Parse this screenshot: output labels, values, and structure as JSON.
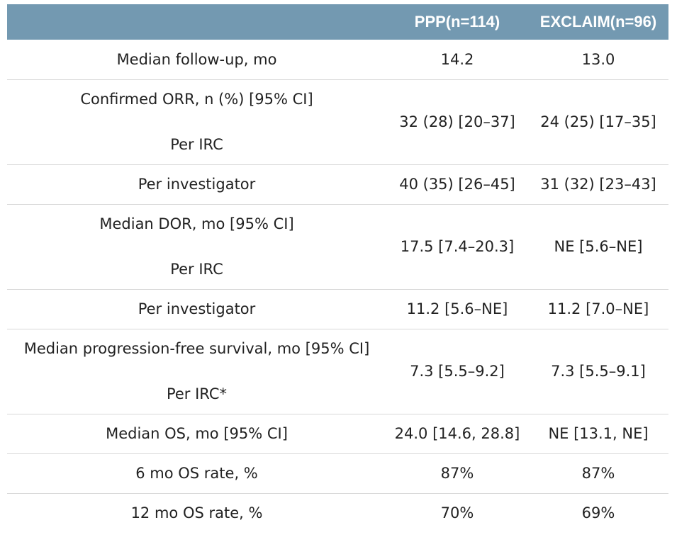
{
  "table": {
    "headers": [
      "",
      "PPP(n=114)",
      "EXCLAIM(n=96)"
    ],
    "rows": [
      {
        "label": "Median follow-up, mo",
        "ppp": "14.2",
        "exclaim": "13.0"
      },
      {
        "label": "Confirmed ORR, n (%) [95% CI]",
        "sublabel": "Per IRC",
        "ppp": "32 (28) [20–37]",
        "exclaim": "24 (25) [17–35]"
      },
      {
        "label": "Per investigator",
        "ppp": "40 (35) [26–45]",
        "exclaim": "31 (32) [23–43]"
      },
      {
        "label": "Median DOR, mo [95% CI]",
        "sublabel": "Per IRC",
        "ppp": "17.5 [7.4–20.3]",
        "exclaim": "NE [5.6–NE]"
      },
      {
        "label": "Per investigator",
        "ppp": "11.2 [5.6–NE]",
        "exclaim": "11.2 [7.0–NE]"
      },
      {
        "label": "Median progression-free survival, mo [95% CI]",
        "sublabel": "Per IRC*",
        "ppp": "7.3 [5.5–9.2]",
        "exclaim": "7.3 [5.5–9.1]"
      },
      {
        "label": "Median OS, mo [95% CI]",
        "ppp": "24.0 [14.6, 28.8]",
        "exclaim": "NE [13.1, NE]"
      },
      {
        "label": "6 mo OS rate, %",
        "ppp": "87%",
        "exclaim": "87%"
      },
      {
        "label": "12 mo OS rate, %",
        "ppp": "70%",
        "exclaim": "69%"
      }
    ]
  },
  "colors": {
    "header_bg": "#7399b1",
    "header_text": "#ffffff",
    "row_divider": "#d8d8d8",
    "body_text": "#222222"
  }
}
